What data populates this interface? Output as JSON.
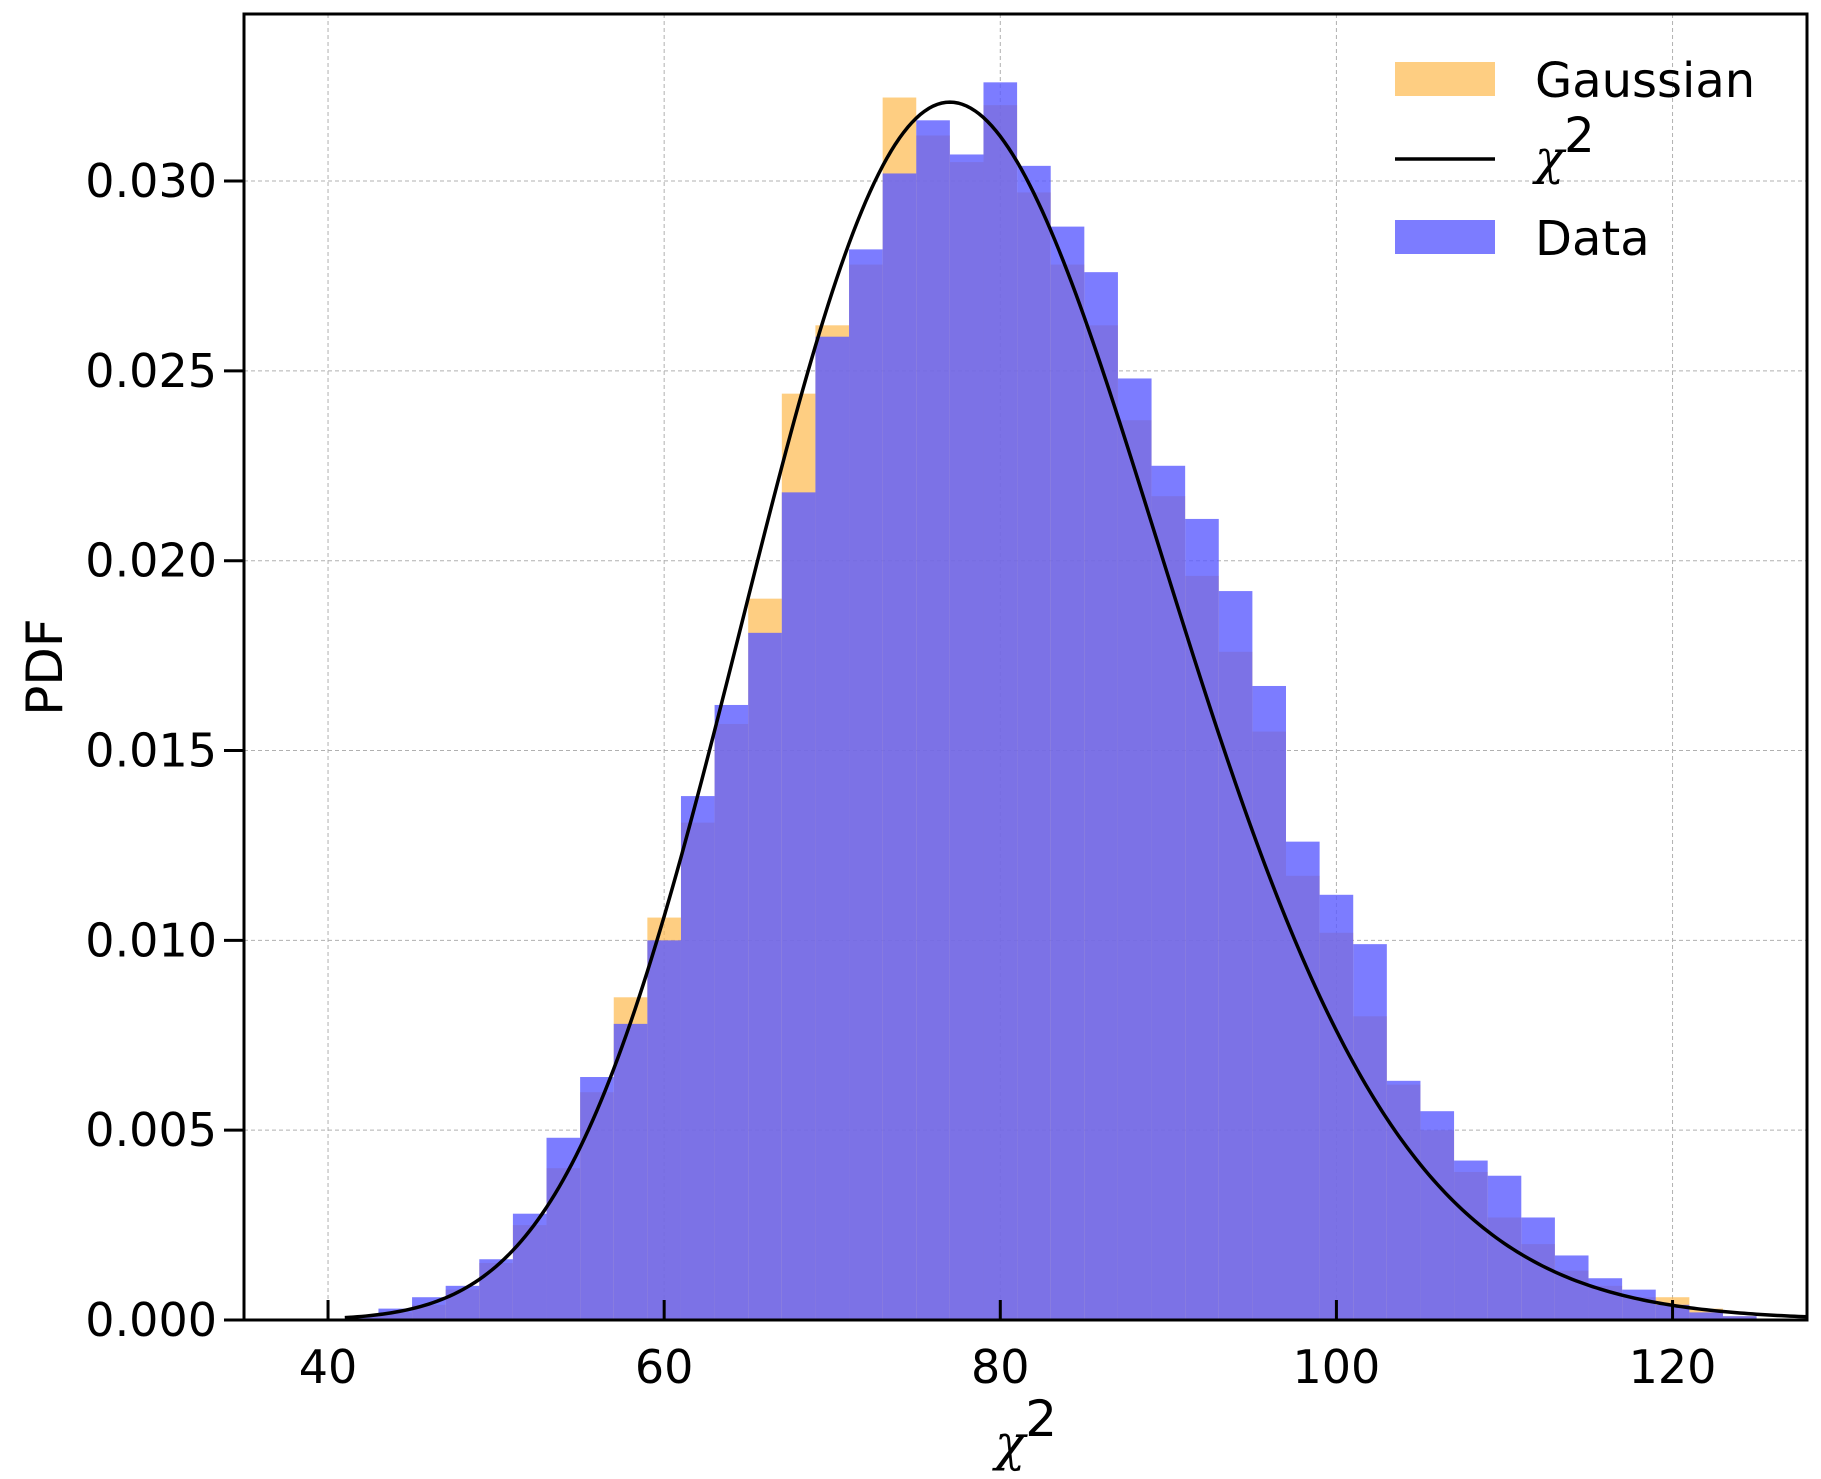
{
  "chart_data": {
    "type": "bar",
    "xlabel": "χ",
    "xlabel_sup": "2",
    "ylabel": "PDF",
    "xlim": [
      35,
      128
    ],
    "ylim": [
      0,
      0.0344
    ],
    "xticks": [
      40,
      60,
      80,
      100,
      120
    ],
    "xtick_labels": [
      "40",
      "60",
      "80",
      "100",
      "120"
    ],
    "yticks": [
      0,
      0.005,
      0.01,
      0.015,
      0.02,
      0.025,
      0.03
    ],
    "ytick_labels": [
      "0.000",
      "0.005",
      "0.010",
      "0.015",
      "0.020",
      "0.025",
      "0.030"
    ],
    "grid": true,
    "legend_position": "top-right",
    "colors": {
      "gaussian": "#fdb94d",
      "data": "#5b5bff",
      "chi2_curve": "#000000",
      "grid": "#b0b0b0"
    },
    "series": [
      {
        "name": "Gaussian",
        "kind": "histogram",
        "bin_edges": [
          41,
          43,
          45,
          47,
          49,
          51,
          53,
          55,
          57,
          59,
          61,
          63,
          65,
          67,
          69,
          71,
          73,
          75,
          77,
          79,
          81,
          83,
          85,
          87,
          89,
          91,
          93,
          95,
          97,
          99,
          101,
          103,
          105,
          107,
          109,
          111,
          113,
          115,
          117,
          119,
          121,
          123,
          125
        ],
        "values": [
          0.0001,
          0.0002,
          0.0004,
          0.0008,
          0.0015,
          0.0025,
          0.004,
          0.006,
          0.0085,
          0.0106,
          0.0131,
          0.0157,
          0.019,
          0.0244,
          0.0262,
          0.0278,
          0.0322,
          0.0312,
          0.0305,
          0.032,
          0.0297,
          0.0278,
          0.0262,
          0.0237,
          0.0217,
          0.0196,
          0.0176,
          0.0155,
          0.0117,
          0.0102,
          0.008,
          0.0062,
          0.005,
          0.0039,
          0.0027,
          0.002,
          0.0013,
          0.0009,
          0.0006,
          0.0006,
          0.0003,
          0.0001
        ]
      },
      {
        "name": "χ",
        "name_sup": "2",
        "kind": "line",
        "dof": 79
      },
      {
        "name": "Data",
        "kind": "histogram",
        "bin_edges": [
          41,
          43,
          45,
          47,
          49,
          51,
          53,
          55,
          57,
          59,
          61,
          63,
          65,
          67,
          69,
          71,
          73,
          75,
          77,
          79,
          81,
          83,
          85,
          87,
          89,
          91,
          93,
          95,
          97,
          99,
          101,
          103,
          105,
          107,
          109,
          111,
          113,
          115,
          117,
          119,
          121,
          123,
          125
        ],
        "values": [
          0.0001,
          0.0003,
          0.0006,
          0.0009,
          0.0016,
          0.0028,
          0.0048,
          0.0064,
          0.0078,
          0.01,
          0.0138,
          0.0162,
          0.0181,
          0.0218,
          0.0259,
          0.0282,
          0.0302,
          0.0316,
          0.0307,
          0.0326,
          0.0304,
          0.0288,
          0.0276,
          0.0248,
          0.0225,
          0.0211,
          0.0192,
          0.0167,
          0.0126,
          0.0112,
          0.0099,
          0.0063,
          0.0055,
          0.0042,
          0.0038,
          0.0027,
          0.0017,
          0.0011,
          0.0008,
          0.0004,
          0.0002,
          0.0001
        ]
      }
    ]
  }
}
